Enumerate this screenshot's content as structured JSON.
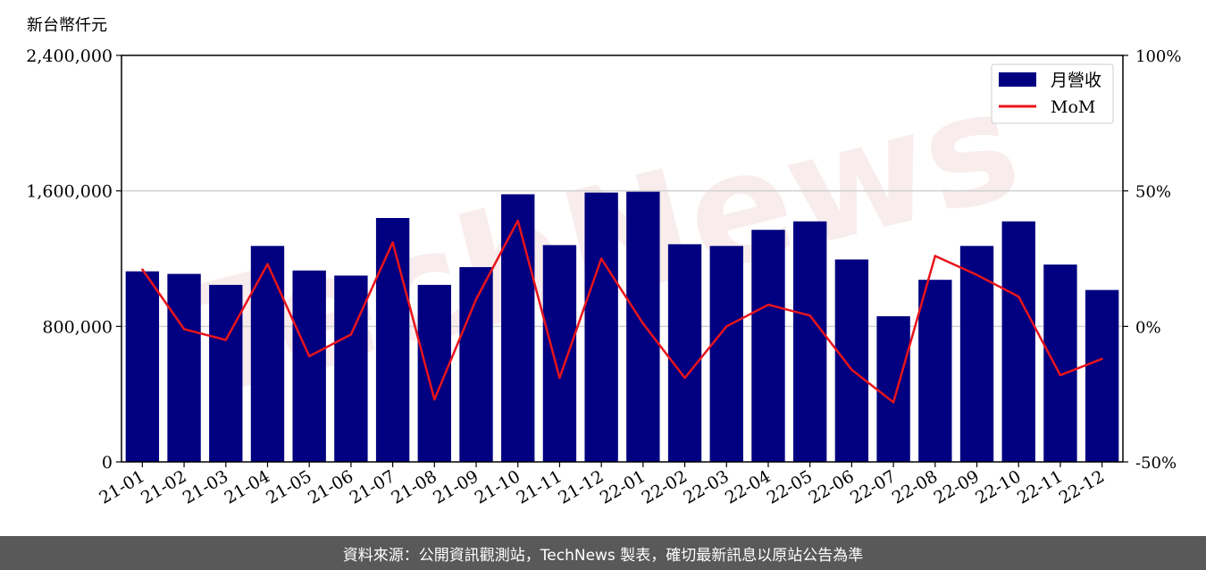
{
  "unit_label": "新台幣仟元",
  "footer": {
    "text": "資料來源：公開資訊觀測站，TechNews 製表，確切最新訊息以原站公告為準"
  },
  "watermark": {
    "text": "TechNews"
  },
  "colors": {
    "bar": "#000080",
    "line": "#e8141c",
    "grid": "#d0d0d0",
    "footer_bg": "#595959",
    "watermark": "#f3dede"
  },
  "chart_data": {
    "type": "bar+line",
    "categories": [
      "21-01",
      "21-02",
      "21-03",
      "21-04",
      "21-05",
      "21-06",
      "21-07",
      "21-08",
      "21-09",
      "21-10",
      "21-11",
      "21-12",
      "22-01",
      "22-02",
      "22-03",
      "22-04",
      "22-05",
      "22-06",
      "22-07",
      "22-08",
      "22-09",
      "22-10",
      "22-11",
      "22-12"
    ],
    "series": [
      {
        "name": "月營收",
        "type": "bar",
        "axis": "left",
        "values": [
          1125000,
          1110000,
          1045000,
          1275000,
          1130000,
          1100000,
          1440000,
          1045000,
          1150000,
          1580000,
          1280000,
          1590000,
          1595000,
          1285000,
          1275000,
          1370000,
          1420000,
          1195000,
          860000,
          1075000,
          1275000,
          1420000,
          1165000,
          1015000
        ]
      },
      {
        "name": "MoM",
        "type": "line",
        "axis": "right",
        "values": [
          21,
          -1,
          -5,
          23,
          -11,
          -3,
          31,
          -27,
          10,
          39,
          -19,
          25,
          1,
          -19,
          0,
          8,
          4,
          -16,
          -28,
          26,
          19,
          11,
          -18,
          -12
        ]
      }
    ],
    "y_left": {
      "min": 0,
      "max": 2400000,
      "ticks": [
        0,
        800000,
        1600000,
        2400000
      ],
      "tick_labels": [
        "0",
        "800,000",
        "1,600,000",
        "2,400,000"
      ]
    },
    "y_right": {
      "min": -50,
      "max": 100,
      "ticks": [
        -50,
        0,
        50,
        100
      ],
      "tick_labels": [
        "-50%",
        "0%",
        "50%",
        "100%"
      ]
    },
    "grid": "horizontal",
    "legend": {
      "position": "top-right",
      "entries": [
        "月營收",
        "MoM"
      ]
    }
  }
}
